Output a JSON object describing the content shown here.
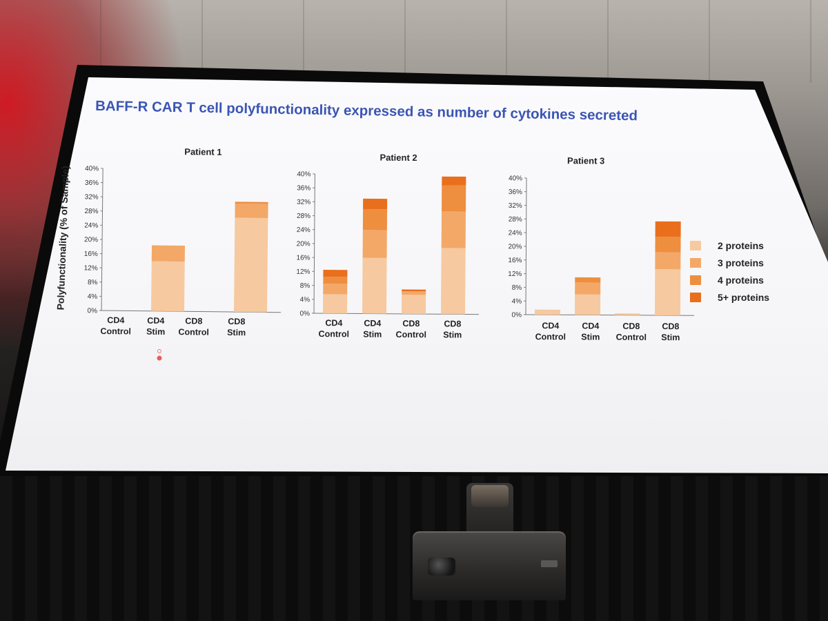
{
  "slide": {
    "title": "BAFF-R CAR T cell polyfunctionality expressed as number of cytokines secreted",
    "title_color": "#3b55b3",
    "ylabel": "Polyfunctionality (% of Sample)"
  },
  "colors": {
    "2 proteins": "#f6c9a0",
    "3 proteins": "#f3a868",
    "4 proteins": "#ee8e3f",
    "5+ proteins": "#e96f1c"
  },
  "chart_data": [
    {
      "type": "bar",
      "title": "Patient 1",
      "ylabel": "Polyfunctionality (% of Sample)",
      "categories": [
        "CD4\nControl",
        "CD4\nStim",
        "CD8\nControl",
        "CD8\nStim"
      ],
      "category_lines": [
        [
          "CD4",
          "Control"
        ],
        [
          "CD4",
          "Stim"
        ],
        [
          "CD8",
          "Control"
        ],
        [
          "CD8",
          "Stim"
        ]
      ],
      "yticks": [
        "0%",
        "4%",
        "8%",
        "12%",
        "16%",
        "20%",
        "24%",
        "28%",
        "32%",
        "36%",
        "40%"
      ],
      "ylim": [
        0,
        40
      ],
      "stacked": true,
      "series": [
        {
          "name": "2 proteins",
          "values": [
            0,
            14,
            0,
            26.5
          ]
        },
        {
          "name": "3 proteins",
          "values": [
            0,
            4.5,
            0,
            4
          ]
        },
        {
          "name": "4 proteins",
          "values": [
            0,
            0,
            0,
            0.5
          ]
        },
        {
          "name": "5+ proteins",
          "values": [
            0,
            0,
            0,
            0
          ]
        }
      ]
    },
    {
      "type": "bar",
      "title": "Patient 2",
      "categories": [
        "CD4\nControl",
        "CD4\nStim",
        "CD8\nControl",
        "CD8\nStim"
      ],
      "category_lines": [
        [
          "CD4",
          "Control"
        ],
        [
          "CD4",
          "Stim"
        ],
        [
          "CD8",
          "Control"
        ],
        [
          "CD8",
          "Stim"
        ]
      ],
      "yticks": [
        "0%",
        "4%",
        "8%",
        "12%",
        "16%",
        "20%",
        "24%",
        "28%",
        "32%",
        "36%",
        "40%"
      ],
      "ylim": [
        0,
        40
      ],
      "stacked": true,
      "series": [
        {
          "name": "2 proteins",
          "values": [
            5.5,
            16,
            5.5,
            19
          ]
        },
        {
          "name": "3 proteins",
          "values": [
            3,
            8,
            1,
            10.5
          ]
        },
        {
          "name": "4 proteins",
          "values": [
            2,
            6,
            0,
            7.5
          ]
        },
        {
          "name": "5+ proteins",
          "values": [
            2,
            3,
            0.5,
            2.5
          ]
        }
      ]
    },
    {
      "type": "bar",
      "title": "Patient 3",
      "categories": [
        "CD4\nControl",
        "CD4\nStim",
        "CD8\nControl",
        "CD8\nStim"
      ],
      "category_lines": [
        [
          "CD4",
          "Control"
        ],
        [
          "CD4",
          "Stim"
        ],
        [
          "CD8",
          "Control"
        ],
        [
          "CD8",
          "Stim"
        ]
      ],
      "yticks": [
        "0%",
        "4%",
        "8%",
        "12%",
        "16%",
        "20%",
        "24%",
        "28%",
        "32%",
        "36%",
        "40%"
      ],
      "ylim": [
        0,
        40
      ],
      "stacked": true,
      "series": [
        {
          "name": "2 proteins",
          "values": [
            1.5,
            6,
            0.5,
            13.5
          ]
        },
        {
          "name": "3 proteins",
          "values": [
            0,
            3.5,
            0,
            5
          ]
        },
        {
          "name": "4 proteins",
          "values": [
            0,
            1.5,
            0,
            4.5
          ]
        },
        {
          "name": "5+ proteins",
          "values": [
            0,
            0,
            0,
            4.5
          ]
        }
      ]
    }
  ],
  "legend": {
    "placement": "right",
    "items": [
      "2 proteins",
      "3 proteins",
      "4 proteins",
      "5+ proteins"
    ]
  }
}
